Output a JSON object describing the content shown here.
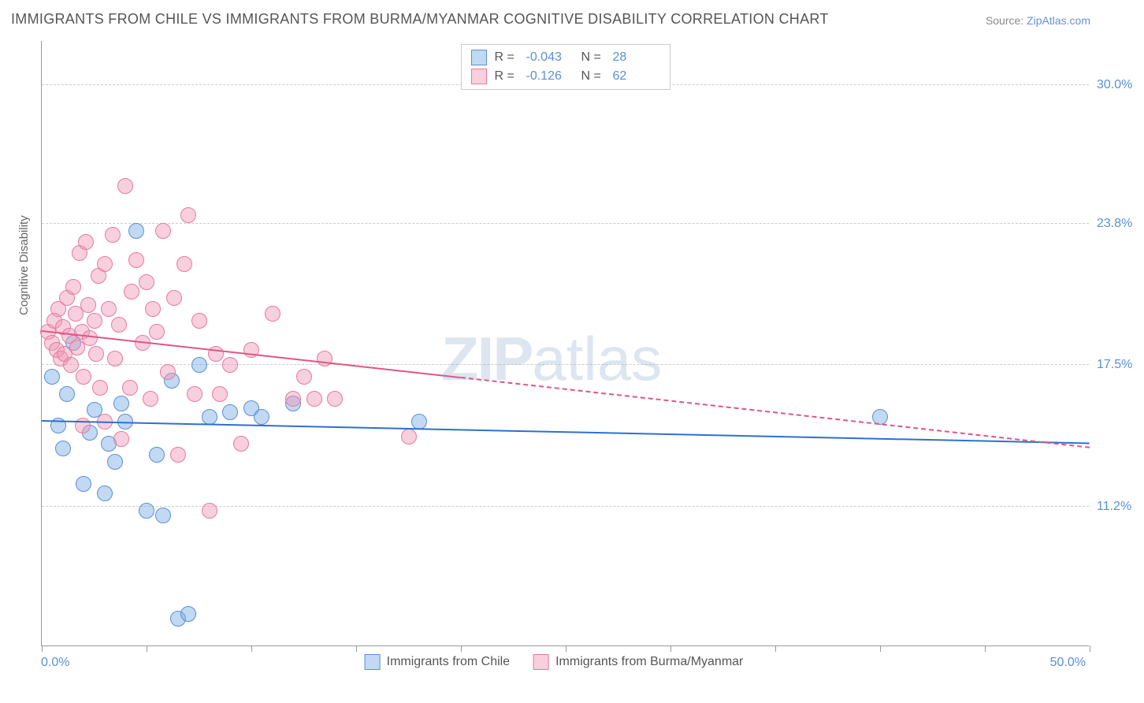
{
  "title": "IMMIGRANTS FROM CHILE VS IMMIGRANTS FROM BURMA/MYANMAR COGNITIVE DISABILITY CORRELATION CHART",
  "source_prefix": "Source: ",
  "source_link": "ZipAtlas.com",
  "watermark_bold": "ZIP",
  "watermark_light": "atlas",
  "y_axis_label": "Cognitive Disability",
  "x_min_label": "0.0%",
  "x_max_label": "50.0%",
  "chart": {
    "type": "scatter",
    "background_color": "#ffffff",
    "grid_color": "#cccccc",
    "axis_color": "#999999",
    "xlim": [
      0,
      50
    ],
    "ylim": [
      5,
      32
    ],
    "y_ticks": [
      {
        "value": 30.0,
        "label": "30.0%"
      },
      {
        "value": 23.8,
        "label": "23.8%"
      },
      {
        "value": 17.5,
        "label": "17.5%"
      },
      {
        "value": 11.2,
        "label": "11.2%"
      }
    ],
    "x_tick_positions": [
      0,
      5,
      10,
      15,
      20,
      25,
      30,
      35,
      40,
      45,
      50
    ],
    "marker_radius": 10,
    "marker_border_width": 1.5,
    "trend_line_width": 2.5,
    "series": [
      {
        "name": "Immigrants from Chile",
        "fill": "rgba(120,170,230,0.45)",
        "stroke": "#5a8fd6",
        "line_color": "#2f6fd0",
        "R_label": "R =",
        "R_value": "-0.043",
        "N_label": "N =",
        "N_value": "28",
        "trend": {
          "x1": 0,
          "y1": 15.0,
          "x2": 50,
          "y2": 14.0,
          "solid_until_x": 50
        },
        "points": [
          [
            0.5,
            17.0
          ],
          [
            0.8,
            14.8
          ],
          [
            1.0,
            13.8
          ],
          [
            1.2,
            16.2
          ],
          [
            1.5,
            18.5
          ],
          [
            2.0,
            12.2
          ],
          [
            2.3,
            14.5
          ],
          [
            2.5,
            15.5
          ],
          [
            3.0,
            11.8
          ],
          [
            3.2,
            14.0
          ],
          [
            3.5,
            13.2
          ],
          [
            3.8,
            15.8
          ],
          [
            4.5,
            23.5
          ],
          [
            5.0,
            11.0
          ],
          [
            5.5,
            13.5
          ],
          [
            5.8,
            10.8
          ],
          [
            6.2,
            16.8
          ],
          [
            6.5,
            6.2
          ],
          [
            7.0,
            6.4
          ],
          [
            7.5,
            17.5
          ],
          [
            8.0,
            15.2
          ],
          [
            9.0,
            15.4
          ],
          [
            10.0,
            15.6
          ],
          [
            10.5,
            15.2
          ],
          [
            12.0,
            15.8
          ],
          [
            18.0,
            15.0
          ],
          [
            40.0,
            15.2
          ],
          [
            4.0,
            15.0
          ]
        ]
      },
      {
        "name": "Immigrants from Burma/Myanmar",
        "fill": "rgba(240,150,180,0.45)",
        "stroke": "#e67a9e",
        "line_color": "#e05585",
        "R_label": "R =",
        "R_value": "-0.126",
        "N_label": "N =",
        "N_value": "62",
        "trend": {
          "x1": 0,
          "y1": 19.0,
          "x2": 50,
          "y2": 13.8,
          "solid_until_x": 20
        },
        "points": [
          [
            0.3,
            19.0
          ],
          [
            0.5,
            18.5
          ],
          [
            0.6,
            19.5
          ],
          [
            0.7,
            18.2
          ],
          [
            0.8,
            20.0
          ],
          [
            0.9,
            17.8
          ],
          [
            1.0,
            19.2
          ],
          [
            1.1,
            18.0
          ],
          [
            1.2,
            20.5
          ],
          [
            1.3,
            18.8
          ],
          [
            1.4,
            17.5
          ],
          [
            1.5,
            21.0
          ],
          [
            1.6,
            19.8
          ],
          [
            1.7,
            18.3
          ],
          [
            1.8,
            22.5
          ],
          [
            1.9,
            19.0
          ],
          [
            2.0,
            17.0
          ],
          [
            2.1,
            23.0
          ],
          [
            2.2,
            20.2
          ],
          [
            2.3,
            18.7
          ],
          [
            2.5,
            19.5
          ],
          [
            2.7,
            21.5
          ],
          [
            2.8,
            16.5
          ],
          [
            3.0,
            22.0
          ],
          [
            3.2,
            20.0
          ],
          [
            3.4,
            23.3
          ],
          [
            3.5,
            17.8
          ],
          [
            3.7,
            19.3
          ],
          [
            3.8,
            14.2
          ],
          [
            4.0,
            25.5
          ],
          [
            4.3,
            20.8
          ],
          [
            4.5,
            22.2
          ],
          [
            4.8,
            18.5
          ],
          [
            5.0,
            21.2
          ],
          [
            5.2,
            16.0
          ],
          [
            5.5,
            19.0
          ],
          [
            5.8,
            23.5
          ],
          [
            6.0,
            17.2
          ],
          [
            6.3,
            20.5
          ],
          [
            6.5,
            13.5
          ],
          [
            7.0,
            24.2
          ],
          [
            7.3,
            16.2
          ],
          [
            7.5,
            19.5
          ],
          [
            8.0,
            11.0
          ],
          [
            8.3,
            18.0
          ],
          [
            8.5,
            16.2
          ],
          [
            9.0,
            17.5
          ],
          [
            9.5,
            14.0
          ],
          [
            10.0,
            18.2
          ],
          [
            11.0,
            19.8
          ],
          [
            12.0,
            16.0
          ],
          [
            12.5,
            17.0
          ],
          [
            13.0,
            16.0
          ],
          [
            13.5,
            17.8
          ],
          [
            14.0,
            16.0
          ],
          [
            17.5,
            14.3
          ],
          [
            3.0,
            15.0
          ],
          [
            4.2,
            16.5
          ],
          [
            5.3,
            20.0
          ],
          [
            6.8,
            22.0
          ],
          [
            2.6,
            18.0
          ],
          [
            1.95,
            14.8
          ]
        ]
      }
    ]
  }
}
